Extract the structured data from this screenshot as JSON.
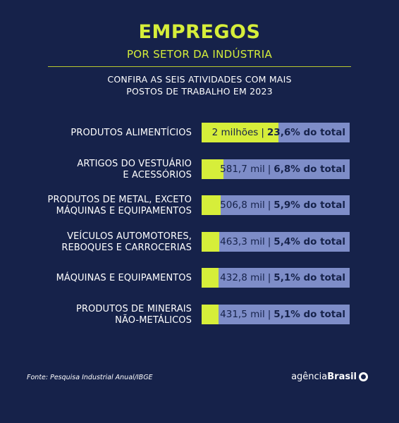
{
  "header": {
    "title": "EMPREGOS",
    "subtitle": "POR SETOR DA INDÚSTRIA",
    "intro_line1": "CONFIRA AS SEIS ATIVIDADES COM MAIS",
    "intro_line2": "POSTOS DE TRABALHO EM 2023"
  },
  "chart_data": {
    "type": "bar",
    "orientation": "horizontal",
    "categories": [
      [
        "PRODUTOS ALIMENTÍCIOS"
      ],
      [
        "ARTIGOS DO VESTUÁRIO",
        "E ACESSÓRIOS"
      ],
      [
        "PRODUTOS DE METAL, EXCETO",
        "MÁQUINAS E EQUIPAMENTOS"
      ],
      [
        "VEÍCULOS AUTOMOTORES,",
        "REBOQUES E CARROCERIAS"
      ],
      [
        "MÁQUINAS E EQUIPAMENTOS"
      ],
      [
        "PRODUTOS DE MINERAIS",
        "NÃO-METÁLICOS"
      ]
    ],
    "value_labels": [
      "2 milhões",
      "581,7 mil",
      "506,8 mil",
      "463,3 mil",
      "432,8 mil",
      "431,5 mil"
    ],
    "share_labels": [
      "23,6% do total",
      "6,8% do total",
      "5,9% do total",
      "5,4% do total",
      "5,1% do total",
      "5,1% do total"
    ],
    "values": [
      2000000,
      581700,
      506800,
      463300,
      432800,
      431500
    ],
    "shares": [
      23.6,
      6.8,
      5.9,
      5.4,
      5.1,
      5.1
    ],
    "xlim": [
      0,
      100
    ],
    "separator": "|"
  },
  "colors": {
    "background": "#16224a",
    "accent": "#d6ee3a",
    "bar_track": "#7e8dc8",
    "bar_text": "#16224a"
  },
  "footer": {
    "source": "Fonte: Pesquisa Industrial Anual/IBGE",
    "brand_part1": "agência",
    "brand_part2": "Brasil"
  }
}
